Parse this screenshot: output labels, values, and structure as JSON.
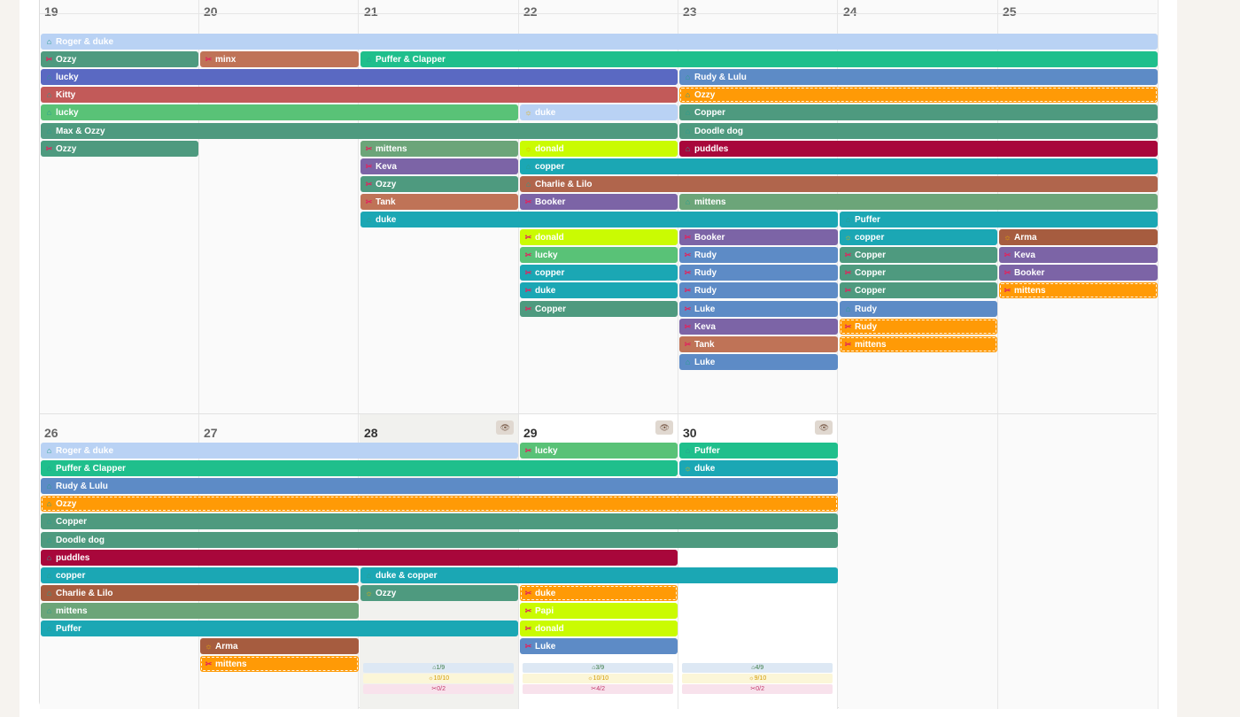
{
  "colors": {
    "blue_light": "#b9d2f4",
    "green": "#4e9a7f",
    "rust": "#bf7357",
    "teal_green": "#1fbf8c",
    "indigo": "#5a69c2",
    "steel_blue": "#5d8bc6",
    "red": "#c25a59",
    "orange": "#ff9a06",
    "light_green": "#59c277",
    "sage": "#6ca579",
    "lime": "#cafb02",
    "crimson": "#a8073b",
    "purple": "#7c64a6",
    "teal": "#1ba7b4",
    "copper": "#b0654c",
    "brown": "#a65c3f"
  },
  "weeks": [
    {
      "days": [
        "19",
        "20",
        "21",
        "22",
        "23",
        "24",
        "25"
      ],
      "events": [
        {
          "label": "Roger & duke",
          "icon": "home-icon",
          "color": "#b9d2f4"
        },
        {
          "label": "Ozzy",
          "icon": "scissors-icon",
          "color": "#4e9a7f"
        },
        {
          "label": "minx",
          "icon": "scissors-icon",
          "color": "#bf7357"
        },
        {
          "label": "Puffer & Clapper",
          "icon": "home-icon",
          "color": "#1fbf8c"
        },
        {
          "label": "lucky",
          "icon": "home-icon",
          "color": "#5a69c2"
        },
        {
          "label": "Rudy & Lulu",
          "icon": "home-icon",
          "color": "#5d8bc6"
        },
        {
          "label": "Kitty",
          "icon": "home-icon",
          "color": "#c25a59"
        },
        {
          "label": "Ozzy",
          "icon": "home-icon",
          "color": "#ff9a06"
        },
        {
          "label": "lucky",
          "icon": "home-icon",
          "color": "#59c277"
        },
        {
          "label": "duke",
          "icon": "sun-icon",
          "color": "#b9d2f4"
        },
        {
          "label": "Copper",
          "icon": "home-icon",
          "color": "#4e9a7f"
        },
        {
          "label": "Max & Ozzy",
          "icon": "home-icon",
          "color": "#4e9a7f"
        },
        {
          "label": "Doodle dog",
          "icon": "home-icon",
          "color": "#4e9a7f"
        },
        {
          "label": "Ozzy",
          "icon": "scissors-icon",
          "color": "#4e9a7f"
        },
        {
          "label": "mittens",
          "icon": "scissors-icon",
          "color": "#6ca579"
        },
        {
          "label": "donald",
          "icon": "sun-icon",
          "color": "#cafb02"
        },
        {
          "label": "puddles",
          "icon": "home-icon",
          "color": "#a8073b"
        },
        {
          "label": "Keva",
          "icon": "scissors-icon",
          "color": "#7c64a6"
        },
        {
          "label": "copper",
          "icon": "home-icon",
          "color": "#1ba7b4"
        },
        {
          "label": "Ozzy",
          "icon": "scissors-icon",
          "color": "#4e9a7f"
        },
        {
          "label": "Charlie & Lilo",
          "icon": "home-icon",
          "color": "#b0654c"
        },
        {
          "label": "Tank",
          "icon": "scissors-icon",
          "color": "#bf7357"
        },
        {
          "label": "Booker",
          "icon": "scissors-icon",
          "color": "#7c64a6"
        },
        {
          "label": "mittens",
          "icon": "home-icon",
          "color": "#6ca579"
        },
        {
          "label": "duke",
          "icon": "home-icon",
          "color": "#1ba7b4"
        },
        {
          "label": "Puffer",
          "icon": "home-icon",
          "color": "#1ba7b4"
        },
        {
          "label": "donald",
          "icon": "scissors-icon",
          "color": "#cafb02"
        },
        {
          "label": "Booker",
          "icon": "scissors-icon",
          "color": "#7c64a6"
        },
        {
          "label": "copper",
          "icon": "sun-icon",
          "color": "#1ba7b4"
        },
        {
          "label": "Arma",
          "icon": "sun-icon",
          "color": "#a65c3f"
        },
        {
          "label": "lucky",
          "icon": "scissors-icon",
          "color": "#59c277"
        },
        {
          "label": "Rudy",
          "icon": "scissors-icon",
          "color": "#5d8bc6"
        },
        {
          "label": "Copper",
          "icon": "scissors-icon",
          "color": "#4e9a7f"
        },
        {
          "label": "Keva",
          "icon": "scissors-icon",
          "color": "#7c64a6"
        },
        {
          "label": "copper",
          "icon": "scissors-icon",
          "color": "#1ba7b4"
        },
        {
          "label": "Rudy",
          "icon": "scissors-icon",
          "color": "#5d8bc6"
        },
        {
          "label": "Copper",
          "icon": "scissors-icon",
          "color": "#4e9a7f"
        },
        {
          "label": "Booker",
          "icon": "scissors-icon",
          "color": "#7c64a6"
        },
        {
          "label": "duke",
          "icon": "scissors-icon",
          "color": "#1ba7b4"
        },
        {
          "label": "Rudy",
          "icon": "scissors-icon",
          "color": "#5d8bc6"
        },
        {
          "label": "Copper",
          "icon": "scissors-icon",
          "color": "#4e9a7f"
        },
        {
          "label": "mittens",
          "icon": "scissors-icon",
          "color": "#ff9a06"
        },
        {
          "label": "Copper",
          "icon": "scissors-icon",
          "color": "#4e9a7f"
        },
        {
          "label": "Luke",
          "icon": "scissors-icon",
          "color": "#5d8bc6"
        },
        {
          "label": "Rudy",
          "icon": "home-icon",
          "color": "#5d8bc6"
        },
        {
          "label": "Keva",
          "icon": "scissors-icon",
          "color": "#7c64a6"
        },
        {
          "label": "Rudy",
          "icon": "scissors-icon",
          "color": "#ff9a06"
        },
        {
          "label": "Tank",
          "icon": "scissors-icon",
          "color": "#bf7357"
        },
        {
          "label": "mittens",
          "icon": "scissors-icon",
          "color": "#ff9a06"
        },
        {
          "label": "Luke",
          "icon": "home-icon",
          "color": "#5d8bc6"
        }
      ]
    },
    {
      "days": [
        "26",
        "27",
        "28",
        "29",
        "30",
        "",
        ""
      ],
      "events": [
        {
          "label": "Roger & duke",
          "icon": "home-icon",
          "color": "#b9d2f4"
        },
        {
          "label": "lucky",
          "icon": "scissors-icon",
          "color": "#59c277"
        },
        {
          "label": "Puffer",
          "icon": "home-icon",
          "color": "#1fbf8c"
        },
        {
          "label": "Puffer & Clapper",
          "icon": "home-icon",
          "color": "#1fbf8c"
        },
        {
          "label": "duke",
          "icon": "sun-icon",
          "color": "#1ba7b4"
        },
        {
          "label": "Rudy & Lulu",
          "icon": "home-icon",
          "color": "#5d8bc6"
        },
        {
          "label": "Ozzy",
          "icon": "home-icon",
          "color": "#ff9a06"
        },
        {
          "label": "Copper",
          "icon": "home-icon",
          "color": "#4e9a7f"
        },
        {
          "label": "Doodle dog",
          "icon": "home-icon",
          "color": "#4e9a7f"
        },
        {
          "label": "puddles",
          "icon": "home-icon",
          "color": "#a8073b"
        },
        {
          "label": "copper",
          "icon": "home-icon",
          "color": "#1ba7b4"
        },
        {
          "label": "duke & copper",
          "icon": "home-icon",
          "color": "#1ba7b4"
        },
        {
          "label": "Charlie & Lilo",
          "icon": "home-icon",
          "color": "#a65c3f"
        },
        {
          "label": "Ozzy",
          "icon": "sun-icon",
          "color": "#4e9a7f"
        },
        {
          "label": "duke",
          "icon": "scissors-icon",
          "color": "#ff9a06"
        },
        {
          "label": "mittens",
          "icon": "home-icon",
          "color": "#6ca579"
        },
        {
          "label": "Papi",
          "icon": "scissors-icon",
          "color": "#cafb02"
        },
        {
          "label": "Puffer",
          "icon": "home-icon",
          "color": "#1ba7b4"
        },
        {
          "label": "donald",
          "icon": "scissors-icon",
          "color": "#cafb02"
        },
        {
          "label": "Arma",
          "icon": "sun-icon",
          "color": "#a65c3f"
        },
        {
          "label": "Luke",
          "icon": "scissors-icon",
          "color": "#5d8bc6"
        },
        {
          "label": "mittens",
          "icon": "scissors-icon",
          "color": "#ff9a06"
        }
      ],
      "stats": [
        {
          "home": "1/9",
          "sun": "10/10",
          "scissors": "0/2"
        },
        {
          "home": "3/9",
          "sun": "10/10",
          "scissors": "4/2"
        },
        {
          "home": "4/9",
          "sun": "9/10",
          "scissors": "0/2"
        }
      ]
    }
  ]
}
